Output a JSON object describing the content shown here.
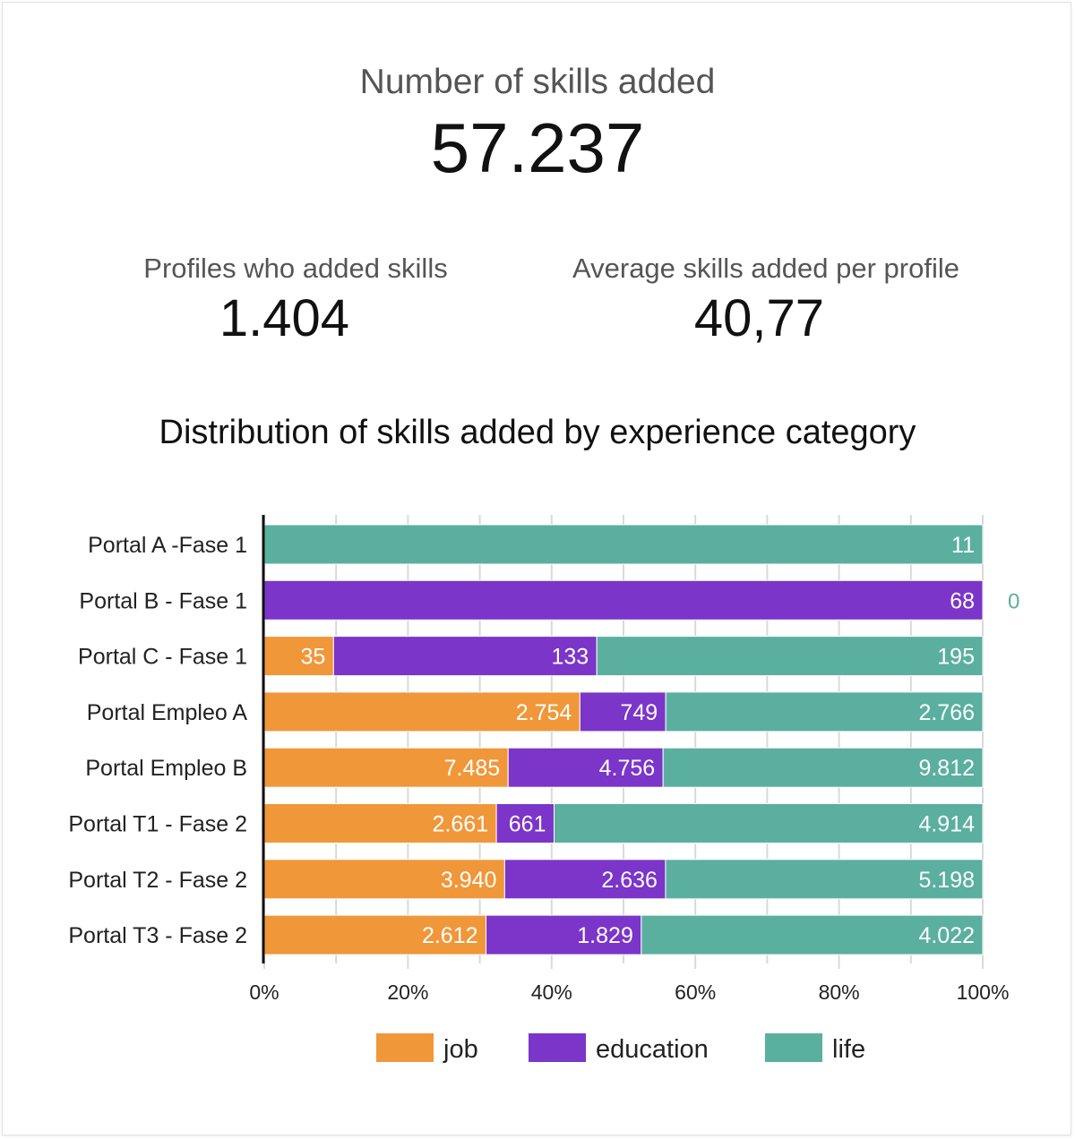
{
  "kpis": {
    "main": {
      "label": "Number of skills added",
      "value": "57.237"
    },
    "profiles": {
      "label": "Profiles who added skills",
      "value": "1.404"
    },
    "average": {
      "label": "Average skills added per profile",
      "value": "40,77"
    }
  },
  "colors": {
    "job": "#F0973A",
    "education": "#7B35C9",
    "life": "#5BAF9F"
  },
  "chart_data": {
    "type": "bar",
    "stacked": "percent",
    "orientation": "horizontal",
    "title": "Distribution of skills added by experience category",
    "categories": [
      "Portal A -Fase 1",
      "Portal B - Fase 1",
      "Portal C - Fase 1",
      "Portal Empleo A",
      "Portal Empleo B",
      "Portal T1 - Fase 2",
      "Portal T2 - Fase 2",
      "Portal T3 - Fase 2"
    ],
    "series": [
      {
        "name": "job",
        "values": [
          0,
          0,
          35,
          2754,
          7485,
          2661,
          3940,
          2612
        ],
        "labels": [
          "",
          "0",
          "35",
          "2.754",
          "7.485",
          "2.661",
          "3.940",
          "2.612"
        ]
      },
      {
        "name": "education",
        "values": [
          0,
          68,
          133,
          749,
          4756,
          661,
          2636,
          1829
        ],
        "labels": [
          "0",
          "68",
          "133",
          "749",
          "4.756",
          "661",
          "2.636",
          "1.829"
        ]
      },
      {
        "name": "life",
        "values": [
          11,
          0,
          195,
          2766,
          9812,
          4914,
          5198,
          4022
        ],
        "labels": [
          "11",
          "0",
          "195",
          "2.766",
          "9.812",
          "4.914",
          "5.198",
          "4.022"
        ]
      }
    ],
    "xticks": [
      "0%",
      "20%",
      "40%",
      "60%",
      "80%",
      "100%"
    ],
    "xlim": [
      0,
      100
    ],
    "grid": true,
    "legend": "bottom-center"
  }
}
